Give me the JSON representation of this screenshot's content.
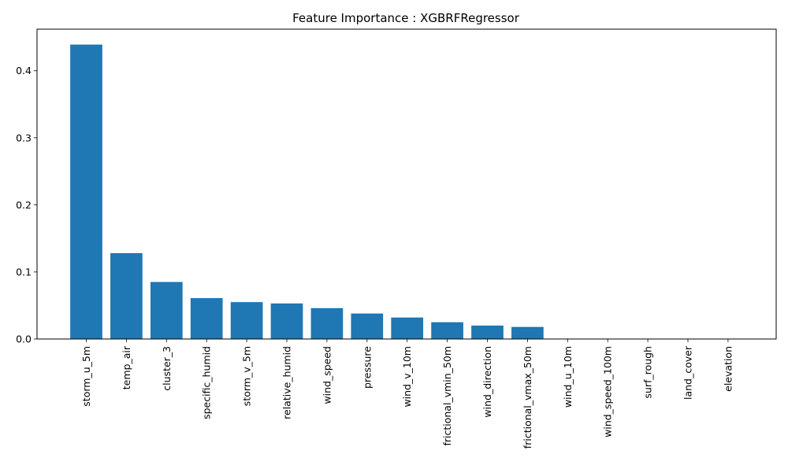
{
  "chart_data": {
    "type": "bar",
    "title": "Feature Importance : XGBRFRegressor",
    "xlabel": "",
    "ylabel": "",
    "categories": [
      "storm_u_5m",
      "temp_air",
      "cluster_3",
      "specific_humid",
      "storm_v_5m",
      "relative_humid",
      "wind_speed",
      "pressure",
      "wind_v_10m",
      "frictional_vmin_50m",
      "wind_direction",
      "frictional_vmax_50m",
      "wind_u_10m",
      "wind_speed_100m",
      "surf_rough",
      "land_cover",
      "elevation"
    ],
    "values": [
      0.439,
      0.128,
      0.085,
      0.061,
      0.055,
      0.053,
      0.046,
      0.038,
      0.032,
      0.025,
      0.02,
      0.018,
      0.0,
      0.0,
      0.0,
      0.0,
      0.0
    ],
    "ylim": [
      0,
      0.462
    ],
    "yticks": [
      "0.0",
      "0.1",
      "0.2",
      "0.3",
      "0.4"
    ],
    "bar_color": "#1f77b4",
    "grid": false,
    "legend": "none"
  }
}
